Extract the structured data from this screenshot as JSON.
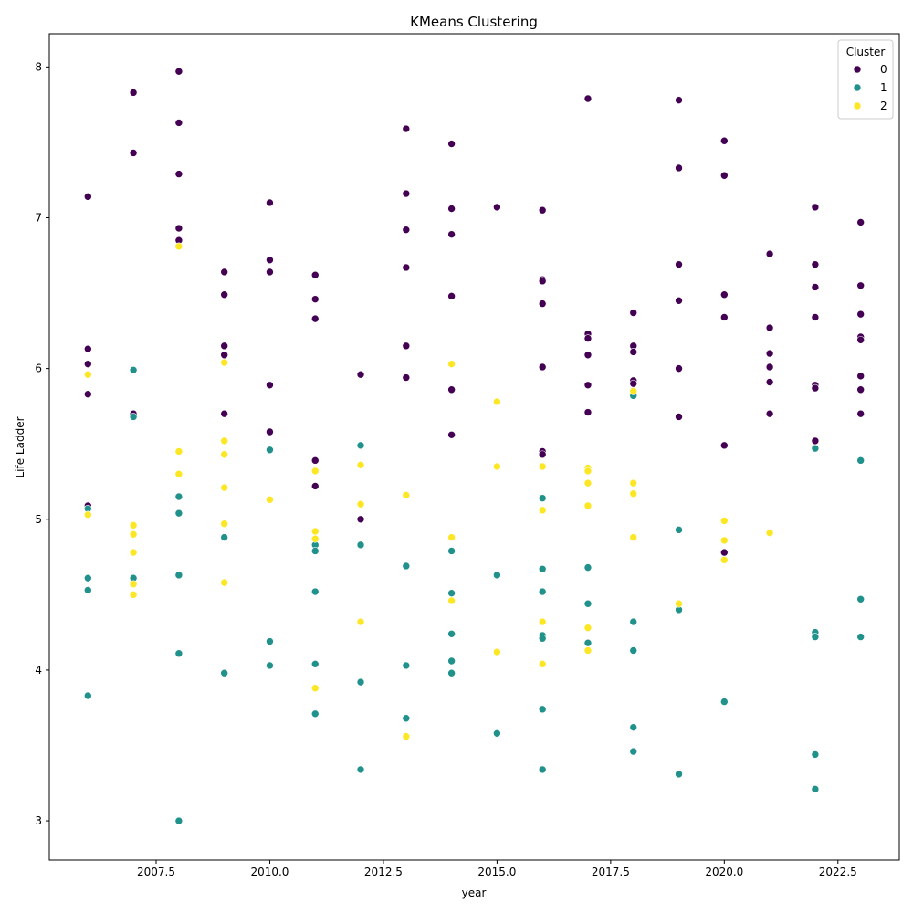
{
  "chart_data": {
    "type": "scatter",
    "title": "KMeans Clustering",
    "xlabel": "year",
    "ylabel": "Life Ladder",
    "xlim": [
      2005.15,
      2023.85
    ],
    "ylim": [
      2.74,
      8.22
    ],
    "x_ticks": [
      2007.5,
      2010.0,
      2012.5,
      2015.0,
      2017.5,
      2020.0,
      2022.5
    ],
    "x_tick_labels": [
      "2007.5",
      "2010.0",
      "2012.5",
      "2015.0",
      "2017.5",
      "2020.0",
      "2022.5"
    ],
    "y_ticks": [
      3,
      4,
      5,
      6,
      7,
      8
    ],
    "y_tick_labels": [
      "3",
      "4",
      "5",
      "6",
      "7",
      "8"
    ],
    "grid": false,
    "legend": {
      "title": "Cluster",
      "position": "top-right",
      "entries": [
        {
          "label": "0",
          "color": "#440154"
        },
        {
          "label": "1",
          "color": "#21918c"
        },
        {
          "label": "2",
          "color": "#fde725"
        }
      ]
    },
    "series": [
      {
        "name": "0",
        "color": "#440154",
        "points": [
          [
            2006,
            7.14
          ],
          [
            2006,
            6.13
          ],
          [
            2006,
            6.03
          ],
          [
            2006,
            5.83
          ],
          [
            2006,
            5.09
          ],
          [
            2007,
            7.83
          ],
          [
            2007,
            7.43
          ],
          [
            2007,
            5.7
          ],
          [
            2008,
            7.97
          ],
          [
            2008,
            7.63
          ],
          [
            2008,
            7.29
          ],
          [
            2008,
            6.93
          ],
          [
            2008,
            6.85
          ],
          [
            2009,
            6.64
          ],
          [
            2009,
            6.49
          ],
          [
            2009,
            6.15
          ],
          [
            2009,
            6.09
          ],
          [
            2009,
            5.7
          ],
          [
            2010,
            7.1
          ],
          [
            2010,
            6.72
          ],
          [
            2010,
            6.64
          ],
          [
            2010,
            5.89
          ],
          [
            2010,
            5.58
          ],
          [
            2011,
            6.62
          ],
          [
            2011,
            6.46
          ],
          [
            2011,
            6.33
          ],
          [
            2011,
            5.39
          ],
          [
            2011,
            5.22
          ],
          [
            2012,
            5.96
          ],
          [
            2012,
            5.0
          ],
          [
            2013,
            7.59
          ],
          [
            2013,
            7.16
          ],
          [
            2013,
            6.92
          ],
          [
            2013,
            6.67
          ],
          [
            2013,
            6.15
          ],
          [
            2013,
            5.94
          ],
          [
            2014,
            7.49
          ],
          [
            2014,
            7.06
          ],
          [
            2014,
            6.89
          ],
          [
            2014,
            6.48
          ],
          [
            2014,
            5.86
          ],
          [
            2014,
            5.56
          ],
          [
            2015,
            7.07
          ],
          [
            2016,
            7.05
          ],
          [
            2016,
            6.59
          ],
          [
            2016,
            6.58
          ],
          [
            2016,
            6.43
          ],
          [
            2016,
            6.01
          ],
          [
            2016,
            5.45
          ],
          [
            2016,
            5.43
          ],
          [
            2017,
            7.79
          ],
          [
            2017,
            6.23
          ],
          [
            2017,
            6.2
          ],
          [
            2017,
            6.09
          ],
          [
            2017,
            5.89
          ],
          [
            2017,
            5.71
          ],
          [
            2018,
            6.37
          ],
          [
            2018,
            6.15
          ],
          [
            2018,
            6.11
          ],
          [
            2018,
            5.92
          ],
          [
            2018,
            5.9
          ],
          [
            2019,
            7.78
          ],
          [
            2019,
            7.33
          ],
          [
            2019,
            6.69
          ],
          [
            2019,
            6.45
          ],
          [
            2019,
            6.0
          ],
          [
            2019,
            5.68
          ],
          [
            2020,
            7.51
          ],
          [
            2020,
            7.28
          ],
          [
            2020,
            6.49
          ],
          [
            2020,
            6.34
          ],
          [
            2020,
            5.49
          ],
          [
            2020,
            4.78
          ],
          [
            2021,
            6.76
          ],
          [
            2021,
            6.27
          ],
          [
            2021,
            6.1
          ],
          [
            2021,
            6.01
          ],
          [
            2021,
            5.91
          ],
          [
            2021,
            5.7
          ],
          [
            2022,
            7.07
          ],
          [
            2022,
            6.69
          ],
          [
            2022,
            6.54
          ],
          [
            2022,
            6.34
          ],
          [
            2022,
            5.89
          ],
          [
            2022,
            5.87
          ],
          [
            2022,
            5.52
          ],
          [
            2023,
            6.97
          ],
          [
            2023,
            6.55
          ],
          [
            2023,
            6.36
          ],
          [
            2023,
            6.21
          ],
          [
            2023,
            6.19
          ],
          [
            2023,
            5.95
          ],
          [
            2023,
            5.86
          ],
          [
            2023,
            5.7
          ]
        ]
      },
      {
        "name": "1",
        "color": "#21918c",
        "points": [
          [
            2006,
            5.07
          ],
          [
            2006,
            4.61
          ],
          [
            2006,
            4.53
          ],
          [
            2006,
            3.83
          ],
          [
            2007,
            5.99
          ],
          [
            2007,
            5.68
          ],
          [
            2007,
            4.61
          ],
          [
            2008,
            5.15
          ],
          [
            2008,
            5.04
          ],
          [
            2008,
            4.63
          ],
          [
            2008,
            4.11
          ],
          [
            2008,
            3.0
          ],
          [
            2009,
            4.88
          ],
          [
            2009,
            3.98
          ],
          [
            2010,
            5.46
          ],
          [
            2010,
            4.19
          ],
          [
            2010,
            4.03
          ],
          [
            2011,
            4.83
          ],
          [
            2011,
            4.79
          ],
          [
            2011,
            4.52
          ],
          [
            2011,
            4.04
          ],
          [
            2011,
            3.71
          ],
          [
            2012,
            5.49
          ],
          [
            2012,
            4.83
          ],
          [
            2012,
            3.92
          ],
          [
            2012,
            3.34
          ],
          [
            2013,
            4.69
          ],
          [
            2013,
            4.03
          ],
          [
            2013,
            3.68
          ],
          [
            2014,
            4.79
          ],
          [
            2014,
            4.51
          ],
          [
            2014,
            4.24
          ],
          [
            2014,
            4.06
          ],
          [
            2014,
            3.98
          ],
          [
            2015,
            4.63
          ],
          [
            2015,
            3.58
          ],
          [
            2016,
            5.14
          ],
          [
            2016,
            4.67
          ],
          [
            2016,
            4.52
          ],
          [
            2016,
            4.23
          ],
          [
            2016,
            4.21
          ],
          [
            2016,
            3.74
          ],
          [
            2016,
            3.34
          ],
          [
            2017,
            4.68
          ],
          [
            2017,
            4.44
          ],
          [
            2017,
            4.18
          ],
          [
            2018,
            5.82
          ],
          [
            2018,
            4.32
          ],
          [
            2018,
            4.13
          ],
          [
            2018,
            3.62
          ],
          [
            2018,
            3.46
          ],
          [
            2019,
            4.93
          ],
          [
            2019,
            4.4
          ],
          [
            2019,
            3.31
          ],
          [
            2020,
            3.79
          ],
          [
            2022,
            5.47
          ],
          [
            2022,
            4.25
          ],
          [
            2022,
            4.22
          ],
          [
            2022,
            3.44
          ],
          [
            2022,
            3.21
          ],
          [
            2023,
            5.39
          ],
          [
            2023,
            4.47
          ],
          [
            2023,
            4.22
          ]
        ]
      },
      {
        "name": "2",
        "color": "#fde725",
        "points": [
          [
            2006,
            5.96
          ],
          [
            2006,
            5.03
          ],
          [
            2007,
            4.96
          ],
          [
            2007,
            4.9
          ],
          [
            2007,
            4.78
          ],
          [
            2007,
            4.57
          ],
          [
            2007,
            4.5
          ],
          [
            2008,
            6.81
          ],
          [
            2008,
            5.45
          ],
          [
            2008,
            5.3
          ],
          [
            2009,
            6.04
          ],
          [
            2009,
            5.52
          ],
          [
            2009,
            5.43
          ],
          [
            2009,
            5.21
          ],
          [
            2009,
            4.97
          ],
          [
            2009,
            4.58
          ],
          [
            2010,
            5.13
          ],
          [
            2011,
            5.32
          ],
          [
            2011,
            4.92
          ],
          [
            2011,
            4.87
          ],
          [
            2011,
            3.88
          ],
          [
            2012,
            5.36
          ],
          [
            2012,
            5.1
          ],
          [
            2012,
            4.32
          ],
          [
            2013,
            5.16
          ],
          [
            2013,
            3.56
          ],
          [
            2014,
            6.03
          ],
          [
            2014,
            4.88
          ],
          [
            2014,
            4.46
          ],
          [
            2015,
            5.78
          ],
          [
            2015,
            5.35
          ],
          [
            2015,
            4.12
          ],
          [
            2016,
            5.35
          ],
          [
            2016,
            5.06
          ],
          [
            2016,
            4.32
          ],
          [
            2016,
            4.04
          ],
          [
            2017,
            5.34
          ],
          [
            2017,
            5.32
          ],
          [
            2017,
            5.24
          ],
          [
            2017,
            5.09
          ],
          [
            2017,
            4.28
          ],
          [
            2017,
            4.13
          ],
          [
            2018,
            5.85
          ],
          [
            2018,
            5.24
          ],
          [
            2018,
            5.17
          ],
          [
            2018,
            4.88
          ],
          [
            2019,
            4.44
          ],
          [
            2020,
            4.99
          ],
          [
            2020,
            4.86
          ],
          [
            2020,
            4.73
          ],
          [
            2021,
            4.91
          ]
        ]
      }
    ]
  }
}
